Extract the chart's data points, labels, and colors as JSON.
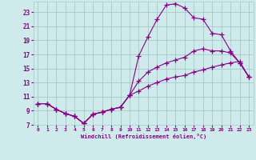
{
  "xlabel": "Windchill (Refroidissement éolien,°C)",
  "bg_color": "#ceeaea",
  "grid_color": "#a8c8c8",
  "line_color": "#880088",
  "marker": "+",
  "markersize": 4,
  "linewidth": 0.8,
  "xlim": [
    -0.5,
    23.5
  ],
  "ylim": [
    7,
    24.5
  ],
  "xticks": [
    0,
    1,
    2,
    3,
    4,
    5,
    6,
    7,
    8,
    9,
    10,
    11,
    12,
    13,
    14,
    15,
    16,
    17,
    18,
    19,
    20,
    21,
    22,
    23
  ],
  "yticks": [
    7,
    9,
    11,
    13,
    15,
    17,
    19,
    21,
    23
  ],
  "series1_x": [
    0,
    1,
    2,
    3,
    4,
    5,
    6,
    7,
    8,
    9,
    10,
    11,
    12,
    13,
    14,
    15,
    16,
    17,
    18,
    19,
    20,
    21,
    22,
    23
  ],
  "series1_y": [
    10.0,
    10.0,
    9.2,
    8.6,
    8.2,
    7.2,
    8.5,
    8.8,
    9.2,
    9.5,
    11.2,
    16.8,
    19.5,
    22.0,
    24.0,
    24.2,
    23.6,
    22.2,
    22.0,
    20.0,
    19.8,
    17.5,
    15.8,
    13.8
  ],
  "series2_x": [
    0,
    1,
    2,
    3,
    4,
    5,
    6,
    7,
    8,
    9,
    10,
    11,
    12,
    13,
    14,
    15,
    16,
    17,
    18,
    19,
    20,
    21,
    22,
    23
  ],
  "series2_y": [
    10.0,
    10.0,
    9.2,
    8.6,
    8.2,
    7.2,
    8.5,
    8.8,
    9.2,
    9.5,
    11.2,
    13.2,
    14.5,
    15.2,
    15.8,
    16.2,
    16.6,
    17.5,
    17.8,
    17.5,
    17.5,
    17.2,
    15.8,
    13.8
  ],
  "series3_x": [
    0,
    1,
    2,
    3,
    4,
    5,
    6,
    7,
    8,
    9,
    10,
    11,
    12,
    13,
    14,
    15,
    16,
    17,
    18,
    19,
    20,
    21,
    22,
    23
  ],
  "series3_y": [
    10.0,
    10.0,
    9.2,
    8.6,
    8.2,
    7.2,
    8.5,
    8.8,
    9.2,
    9.5,
    11.2,
    11.8,
    12.5,
    13.0,
    13.5,
    13.8,
    14.0,
    14.5,
    14.8,
    15.2,
    15.5,
    15.8,
    16.0,
    13.8
  ]
}
